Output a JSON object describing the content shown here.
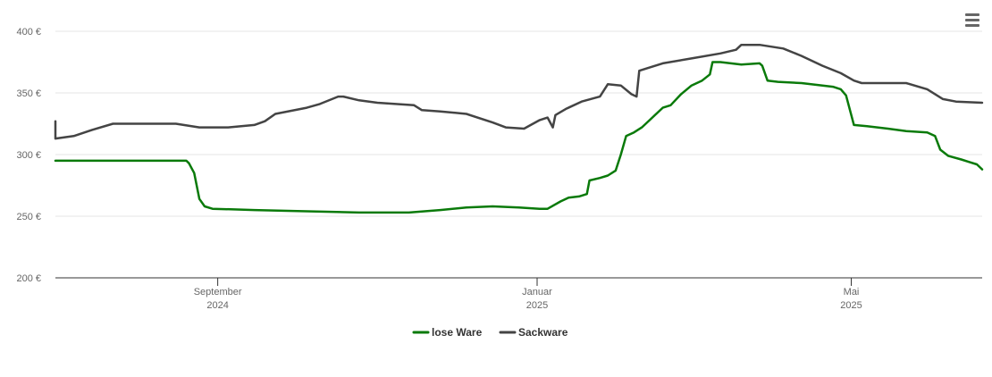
{
  "menu": {
    "icon": "hamburger-menu-icon"
  },
  "chart_data": {
    "type": "line",
    "title": "",
    "xlabel": "",
    "ylabel": "",
    "x_range": [
      "2024-07-01",
      "2025-06-20"
    ],
    "ylim": [
      200,
      400
    ],
    "y_ticks": [
      {
        "value": 200,
        "label": "200 €"
      },
      {
        "value": 250,
        "label": "250 €"
      },
      {
        "value": 300,
        "label": "300 €"
      },
      {
        "value": 350,
        "label": "350 €"
      },
      {
        "value": 400,
        "label": "400 €"
      }
    ],
    "x_ticks": [
      {
        "date": "2024-09-01",
        "line1": "September",
        "line2": "2024"
      },
      {
        "date": "2025-01-01",
        "line1": "Januar",
        "line2": "2025"
      },
      {
        "date": "2025-05-01",
        "line1": "Mai",
        "line2": "2025"
      }
    ],
    "grid": true,
    "legend_position": "bottom-center",
    "series": [
      {
        "name": "lose Ware",
        "color": "#0a7a0a",
        "points": [
          [
            "2024-07-01",
            295
          ],
          [
            "2024-08-20",
            295
          ],
          [
            "2024-08-21",
            293
          ],
          [
            "2024-08-23",
            285
          ],
          [
            "2024-08-25",
            264
          ],
          [
            "2024-08-27",
            258
          ],
          [
            "2024-08-30",
            256
          ],
          [
            "2024-09-15",
            255
          ],
          [
            "2024-10-05",
            254
          ],
          [
            "2024-10-25",
            253
          ],
          [
            "2024-11-13",
            253
          ],
          [
            "2024-11-25",
            255
          ],
          [
            "2024-12-05",
            257
          ],
          [
            "2024-12-15",
            258
          ],
          [
            "2024-12-25",
            257
          ],
          [
            "2025-01-02",
            256
          ],
          [
            "2025-01-05",
            256
          ],
          [
            "2025-01-10",
            262
          ],
          [
            "2025-01-13",
            265
          ],
          [
            "2025-01-17",
            266
          ],
          [
            "2025-01-20",
            268
          ],
          [
            "2025-01-21",
            279
          ],
          [
            "2025-01-25",
            281
          ],
          [
            "2025-01-28",
            283
          ],
          [
            "2025-01-31",
            287
          ],
          [
            "2025-02-02",
            300
          ],
          [
            "2025-02-04",
            315
          ],
          [
            "2025-02-07",
            318
          ],
          [
            "2025-02-10",
            322
          ],
          [
            "2025-02-14",
            330
          ],
          [
            "2025-02-18",
            338
          ],
          [
            "2025-02-21",
            340
          ],
          [
            "2025-02-25",
            349
          ],
          [
            "2025-03-01",
            356
          ],
          [
            "2025-03-05",
            360
          ],
          [
            "2025-03-08",
            365
          ],
          [
            "2025-03-09",
            375
          ],
          [
            "2025-03-12",
            375
          ],
          [
            "2025-03-20",
            373
          ],
          [
            "2025-03-27",
            374
          ],
          [
            "2025-03-28",
            372
          ],
          [
            "2025-03-30",
            360
          ],
          [
            "2025-04-03",
            359
          ],
          [
            "2025-04-12",
            358
          ],
          [
            "2025-04-20",
            356
          ],
          [
            "2025-04-24",
            355
          ],
          [
            "2025-04-27",
            353
          ],
          [
            "2025-04-29",
            348
          ],
          [
            "2025-05-02",
            324
          ],
          [
            "2025-05-07",
            323
          ],
          [
            "2025-05-15",
            321
          ],
          [
            "2025-05-22",
            319
          ],
          [
            "2025-05-30",
            318
          ],
          [
            "2025-06-02",
            315
          ],
          [
            "2025-06-04",
            304
          ],
          [
            "2025-06-07",
            299
          ],
          [
            "2025-06-12",
            296
          ],
          [
            "2025-06-15",
            294
          ],
          [
            "2025-06-18",
            292
          ],
          [
            "2025-06-20",
            288
          ]
        ]
      },
      {
        "name": "Sackware",
        "color": "#444444",
        "points": [
          [
            "2024-07-01",
            327
          ],
          [
            "2024-07-01",
            313
          ],
          [
            "2024-07-08",
            315
          ],
          [
            "2024-07-15",
            320
          ],
          [
            "2024-07-23",
            325
          ],
          [
            "2024-08-05",
            325
          ],
          [
            "2024-08-16",
            325
          ],
          [
            "2024-08-25",
            322
          ],
          [
            "2024-09-05",
            322
          ],
          [
            "2024-09-15",
            324
          ],
          [
            "2024-09-19",
            327
          ],
          [
            "2024-09-23",
            333
          ],
          [
            "2024-10-05",
            338
          ],
          [
            "2024-10-10",
            341
          ],
          [
            "2024-10-17",
            347
          ],
          [
            "2024-10-19",
            347
          ],
          [
            "2024-10-25",
            344
          ],
          [
            "2024-11-01",
            342
          ],
          [
            "2024-11-08",
            341
          ],
          [
            "2024-11-15",
            340
          ],
          [
            "2024-11-18",
            336
          ],
          [
            "2024-11-25",
            335
          ],
          [
            "2024-12-05",
            333
          ],
          [
            "2024-12-15",
            326
          ],
          [
            "2024-12-20",
            322
          ],
          [
            "2024-12-27",
            321
          ],
          [
            "2025-01-02",
            328
          ],
          [
            "2025-01-05",
            330
          ],
          [
            "2025-01-07",
            322
          ],
          [
            "2025-01-08",
            332
          ],
          [
            "2025-01-12",
            337
          ],
          [
            "2025-01-18",
            343
          ],
          [
            "2025-01-25",
            347
          ],
          [
            "2025-01-28",
            357
          ],
          [
            "2025-02-02",
            356
          ],
          [
            "2025-02-06",
            349
          ],
          [
            "2025-02-08",
            347
          ],
          [
            "2025-02-09",
            368
          ],
          [
            "2025-02-12",
            370
          ],
          [
            "2025-02-18",
            374
          ],
          [
            "2025-03-01",
            378
          ],
          [
            "2025-03-12",
            382
          ],
          [
            "2025-03-18",
            385
          ],
          [
            "2025-03-20",
            389
          ],
          [
            "2025-03-27",
            389
          ],
          [
            "2025-04-05",
            386
          ],
          [
            "2025-04-12",
            380
          ],
          [
            "2025-04-20",
            372
          ],
          [
            "2025-04-27",
            366
          ],
          [
            "2025-05-02",
            360
          ],
          [
            "2025-05-05",
            358
          ],
          [
            "2025-05-15",
            358
          ],
          [
            "2025-05-22",
            358
          ],
          [
            "2025-05-30",
            353
          ],
          [
            "2025-06-05",
            345
          ],
          [
            "2025-06-10",
            343
          ],
          [
            "2025-06-20",
            342
          ]
        ]
      }
    ]
  }
}
